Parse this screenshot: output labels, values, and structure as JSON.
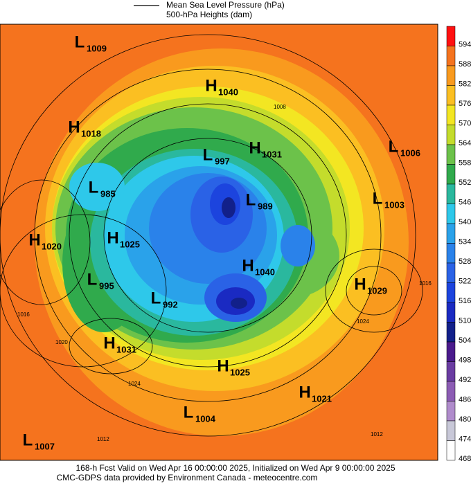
{
  "legend": {
    "line1": "Mean Sea Level Pressure (hPa)",
    "line2": "500-hPa Heights (dam)"
  },
  "colorbar": [
    {
      "value": 594,
      "color": "#ff1010"
    },
    {
      "value": 588,
      "color": "#f5731e"
    },
    {
      "value": 582,
      "color": "#f99a1e"
    },
    {
      "value": 576,
      "color": "#fbbf22"
    },
    {
      "value": 570,
      "color": "#f3e622"
    },
    {
      "value": 564,
      "color": "#c4dc2c"
    },
    {
      "value": 558,
      "color": "#6cc24a"
    },
    {
      "value": 552,
      "color": "#30aa4c"
    },
    {
      "value": 546,
      "color": "#2ab89e"
    },
    {
      "value": 540,
      "color": "#2ec8ea"
    },
    {
      "value": 534,
      "color": "#2aa2ea"
    },
    {
      "value": 528,
      "color": "#2a82ea"
    },
    {
      "value": 522,
      "color": "#2a62e6"
    },
    {
      "value": 516,
      "color": "#1c44de"
    },
    {
      "value": 510,
      "color": "#1a2ac2"
    },
    {
      "value": 504,
      "color": "#12208a"
    },
    {
      "value": 498,
      "color": "#4a1a8c"
    },
    {
      "value": 492,
      "color": "#6a3ca2"
    },
    {
      "value": 486,
      "color": "#8c5cb4"
    },
    {
      "value": 480,
      "color": "#b08ccc"
    },
    {
      "value": 474,
      "color": "#c8c8d8"
    },
    {
      "value": 468,
      "color": "#ffffff"
    }
  ],
  "centers": [
    {
      "letter": "L",
      "pressure": 1009
    },
    {
      "letter": "H",
      "pressure": 1040
    },
    {
      "letter": "H",
      "pressure": 1018
    },
    {
      "letter": "L",
      "pressure": 997
    },
    {
      "letter": "H",
      "pressure": 1031
    },
    {
      "letter": "L",
      "pressure": 1006
    },
    {
      "letter": "L",
      "pressure": 985
    },
    {
      "letter": "L",
      "pressure": 989
    },
    {
      "letter": "L",
      "pressure": 1003
    },
    {
      "letter": "H",
      "pressure": 1020
    },
    {
      "letter": "H",
      "pressure": 1025
    },
    {
      "letter": "H",
      "pressure": 1040
    },
    {
      "letter": "L",
      "pressure": 995
    },
    {
      "letter": "H",
      "pressure": 1029
    },
    {
      "letter": "L",
      "pressure": 992
    },
    {
      "letter": "H",
      "pressure": 1031
    },
    {
      "letter": "H",
      "pressure": 1025
    },
    {
      "letter": "H",
      "pressure": 1021
    },
    {
      "letter": "L",
      "pressure": 1004
    },
    {
      "letter": "L",
      "pressure": 1007
    }
  ],
  "isobar_labels": [
    "1016",
    "1024",
    "1012",
    "1020",
    "1024",
    "1016",
    "1012",
    "1008"
  ],
  "footer": {
    "line1": "168-h Fcst Valid on Wed Apr 16 00:00:00 2025, Initialized on Wed Apr  9 00:00:00 2025",
    "line2": "CMC-GDPS data provided by Environment Canada - meteocentre.com"
  }
}
